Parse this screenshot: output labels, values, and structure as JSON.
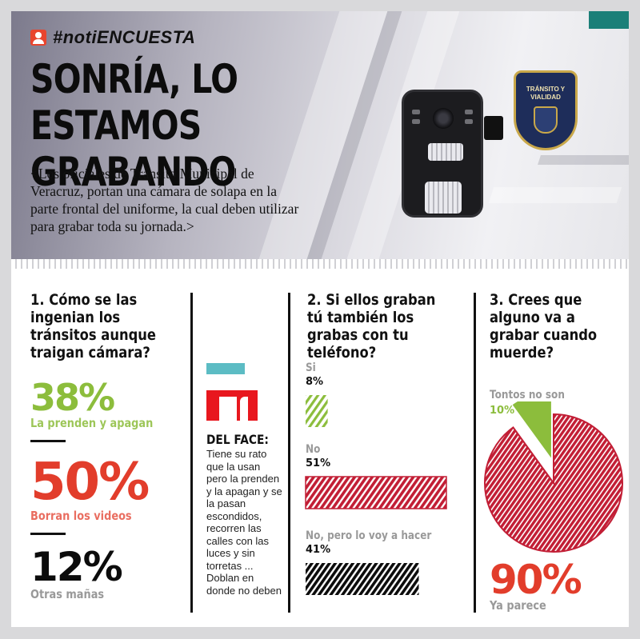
{
  "header": {
    "hashtag": "#notiENCUESTA",
    "headline_line1": "SONRÍA, LO ESTAMOS",
    "headline_line2": "GRABANDO",
    "intro": "<Los oficiales de Tránsito Municipal de Veracruz, portan una cámara de solapa en la parte frontal del uniforme, la cual deben utilizar para grabar toda su jornada.>",
    "badge_text": "TRÁNSITO Y VIALIDAD"
  },
  "colors": {
    "green": "#8cbd3c",
    "red": "#e23d2b",
    "dark_red": "#c21e35",
    "black": "#0c0c0c",
    "grey": "#999999"
  },
  "q1": {
    "question": "1. Cómo se las ingenian los tránsitos aunque traigan cámara?",
    "items": [
      {
        "value": "38%",
        "label": "La prenden y apagan"
      },
      {
        "value": "50%",
        "label": "Borran los videos"
      },
      {
        "value": "12%",
        "label": "Otras mañas"
      }
    ]
  },
  "facebook": {
    "title": "DEL FACE:",
    "body": "Tiene su rato que la usan pero la prenden y la apagan y se la pasan escondidos, recorren las calles con las luces y sin torretas ... Doblan en donde no deben"
  },
  "chart_data": [
    {
      "type": "bar",
      "title": "2. Si ellos graban tú también los grabas con tu teléfono?",
      "categories": [
        "Si",
        "No",
        "No, pero lo voy a hacer"
      ],
      "values": [
        8,
        51,
        41
      ],
      "value_labels": [
        "8%",
        "51%",
        "41%"
      ],
      "colors": [
        "#8cbd3c",
        "#c21e35",
        "#0c0c0c"
      ]
    },
    {
      "type": "pie",
      "title": "3. Crees que alguno va a grabar cuando muerde?",
      "slices": [
        {
          "label": "Tontos no son",
          "value": 10,
          "display": "10%",
          "color": "#8cbd3c"
        },
        {
          "label": "Ya parece",
          "value": 90,
          "display": "90%",
          "color": "#c21e35"
        }
      ]
    }
  ]
}
